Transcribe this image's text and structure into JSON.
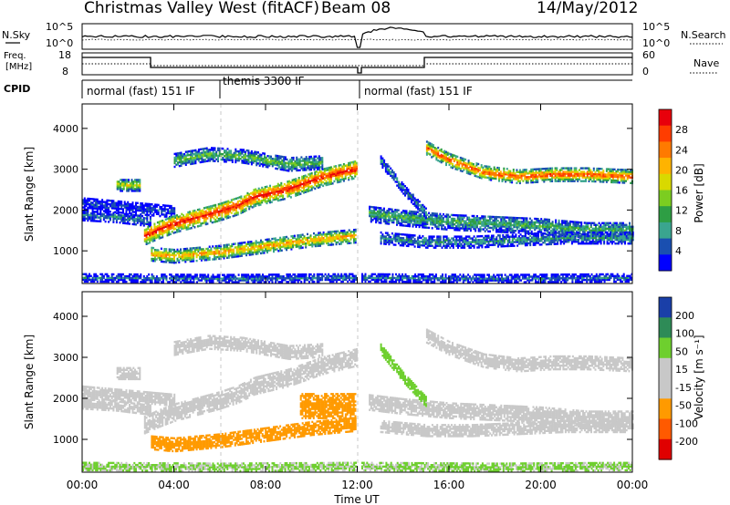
{
  "header": {
    "title": "Christmas Valley West (fitACF)",
    "beam": "Beam 08",
    "date": "14/May/2012"
  },
  "panels": {
    "nsky": {
      "label": "N.Sky",
      "right_label": "N.Search",
      "ticks_left": [
        "10^5",
        "10^0"
      ],
      "ticks_right": [
        "10^5",
        "10^0"
      ]
    },
    "freq": {
      "label_line1": "Freq.",
      "label_line2": "[MHz]",
      "right_label": "Nave",
      "ticks_left": [
        "18",
        "8"
      ],
      "ticks_right": [
        "60",
        "0"
      ]
    },
    "cpid": {
      "label": "CPID",
      "segments": [
        "normal (fast) 151 IF",
        "themis 3300 IF",
        "normal (fast) 151 IF"
      ]
    }
  },
  "chart_data": [
    {
      "type": "heatmap",
      "quantity": "power",
      "ylabel": "Slant Range [km]",
      "xlabel": "Time UT",
      "x_ticks": [
        "00:00",
        "04:00",
        "08:00",
        "12:00",
        "16:00",
        "20:00",
        "00:00"
      ],
      "xlim_hours": [
        0,
        24
      ],
      "y_ticks": [
        1000,
        2000,
        3000,
        4000
      ],
      "ylim": [
        200,
        4600
      ],
      "colorbar_label": "Power [dB]",
      "colorbar_ticks": [
        "28",
        "24",
        "20",
        "16",
        "12",
        "8",
        "4"
      ],
      "colorbar_colors": [
        "#e8000b",
        "#ff3d00",
        "#ff7a00",
        "#ffb300",
        "#d9d900",
        "#7ccd20",
        "#2e9e44",
        "#3aa58f",
        "#1a4fb0",
        "#0000ff"
      ],
      "echo_bands": [
        {
          "t": [
            0.0,
            1.0,
            2.0,
            3.0,
            4.0
          ],
          "range": [
            2150,
            2100,
            2050,
            2000,
            1950
          ],
          "width_km": 150,
          "power_db": 6
        },
        {
          "t": [
            0.0,
            1.5,
            3.0
          ],
          "range": [
            1850,
            1800,
            1700
          ],
          "width_km": 120,
          "power_db": 9
        },
        {
          "t": [
            2.7,
            3.3,
            4.0,
            5.0,
            6.0,
            6.8,
            7.5,
            9.0,
            10.5,
            12.0
          ],
          "range": [
            1350,
            1500,
            1650,
            1800,
            1950,
            2100,
            2300,
            2500,
            2800,
            3000
          ],
          "width_km": 220,
          "power_db": 28
        },
        {
          "t": [
            3.0,
            4.0,
            6.0,
            8.0,
            10.0,
            12.0
          ],
          "range": [
            900,
            850,
            950,
            1100,
            1250,
            1350
          ],
          "width_km": 160,
          "power_db": 22
        },
        {
          "t": [
            4.0,
            5.5,
            7.0,
            9.0,
            10.5
          ],
          "range": [
            3200,
            3350,
            3300,
            3100,
            3150
          ],
          "width_km": 160,
          "power_db": 14
        },
        {
          "t": [
            1.5,
            2.5
          ],
          "range": [
            2600,
            2600
          ],
          "width_km": 150,
          "power_db": 18
        },
        {
          "t": [
            15.0,
            16.0,
            17.5,
            19.0,
            20.5,
            22.0,
            24.0
          ],
          "range": [
            3500,
            3200,
            2900,
            2800,
            2850,
            2850,
            2800
          ],
          "width_km": 160,
          "power_db": 26
        },
        {
          "t": [
            12.5,
            14.0,
            16.0,
            18.0,
            20.0,
            22.0,
            24.0
          ],
          "range": [
            1900,
            1800,
            1700,
            1650,
            1600,
            1500,
            1500
          ],
          "width_km": 200,
          "power_db": 12
        },
        {
          "t": [
            13.0,
            15.0,
            17.0,
            19.0,
            21.0,
            24.0
          ],
          "range": [
            1300,
            1200,
            1200,
            1250,
            1300,
            1300
          ],
          "width_km": 140,
          "power_db": 10
        },
        {
          "t": [
            13.0,
            14.0,
            15.0
          ],
          "range": [
            3200,
            2500,
            1900
          ],
          "width_km": 130,
          "power_db": 9
        },
        {
          "t": [
            0.0,
            6.0,
            12.0,
            18.0,
            24.0
          ],
          "range": [
            320,
            300,
            320,
            300,
            320
          ],
          "width_km": 90,
          "power_db": 8
        }
      ]
    },
    {
      "type": "heatmap",
      "quantity": "velocity",
      "ylabel": "Slant Range [km]",
      "xlabel": "Time UT",
      "x_ticks": [
        "00:00",
        "04:00",
        "08:00",
        "12:00",
        "16:00",
        "20:00",
        "00:00"
      ],
      "xlim_hours": [
        0,
        24
      ],
      "y_ticks": [
        1000,
        2000,
        3000,
        4000
      ],
      "ylim": [
        200,
        4600
      ],
      "colorbar_label": "Velocity [m s⁻¹]",
      "colorbar_ticks": [
        "200",
        "100",
        "50",
        "15",
        "-15",
        "-50",
        "-100",
        "-200"
      ],
      "colorbar_colors": [
        "#1a3fa8",
        "#2e8b57",
        "#6ecf2e",
        "#c8c8c8",
        "#c8c8c8",
        "#ff9a00",
        "#ff5a00",
        "#e00000"
      ],
      "echo_bands": [
        {
          "t": [
            0.0,
            1.0,
            2.0,
            3.0,
            4.0
          ],
          "range": [
            2150,
            2100,
            2050,
            2000,
            1950
          ],
          "width_km": 150,
          "velocity": 0
        },
        {
          "t": [
            0.0,
            1.5,
            3.0
          ],
          "range": [
            1850,
            1800,
            1700
          ],
          "width_km": 120,
          "velocity": 0
        },
        {
          "t": [
            2.7,
            3.3,
            4.0,
            5.0,
            6.0,
            6.8,
            7.5,
            9.0,
            10.5,
            12.0
          ],
          "range": [
            1350,
            1500,
            1650,
            1800,
            1950,
            2100,
            2300,
            2500,
            2800,
            3000
          ],
          "width_km": 220,
          "velocity": 0
        },
        {
          "t": [
            3.0,
            4.0,
            6.0,
            8.0,
            10.0,
            12.0
          ],
          "range": [
            900,
            850,
            950,
            1100,
            1250,
            1350
          ],
          "width_km": 160,
          "velocity": -50
        },
        {
          "t": [
            9.5,
            11.9
          ],
          "range": [
            1800,
            1800
          ],
          "width_km": 300,
          "velocity": -50
        },
        {
          "t": [
            4.0,
            5.5,
            7.0,
            9.0,
            10.5
          ],
          "range": [
            3200,
            3350,
            3300,
            3100,
            3150
          ],
          "width_km": 160,
          "velocity": 0
        },
        {
          "t": [
            1.5,
            2.5
          ],
          "range": [
            2600,
            2600
          ],
          "width_km": 150,
          "velocity": 0
        },
        {
          "t": [
            15.0,
            16.0,
            17.5,
            19.0,
            20.5,
            22.0,
            24.0
          ],
          "range": [
            3500,
            3200,
            2900,
            2800,
            2850,
            2850,
            2800
          ],
          "width_km": 160,
          "velocity": 0
        },
        {
          "t": [
            12.5,
            14.0,
            16.0,
            18.0,
            20.0,
            22.0,
            24.0
          ],
          "range": [
            1900,
            1800,
            1700,
            1650,
            1600,
            1500,
            1500
          ],
          "width_km": 200,
          "velocity": 0
        },
        {
          "t": [
            13.0,
            15.0,
            17.0,
            19.0,
            21.0,
            24.0
          ],
          "range": [
            1300,
            1200,
            1200,
            1250,
            1300,
            1300
          ],
          "width_km": 140,
          "velocity": 0
        },
        {
          "t": [
            13.0,
            14.0,
            15.0
          ],
          "range": [
            3200,
            2500,
            1900
          ],
          "width_km": 130,
          "velocity": 50
        },
        {
          "t": [
            0.0,
            6.0,
            12.0,
            18.0,
            24.0
          ],
          "range": [
            320,
            300,
            320,
            300,
            320
          ],
          "width_km": 90,
          "velocity": 30
        }
      ]
    }
  ]
}
